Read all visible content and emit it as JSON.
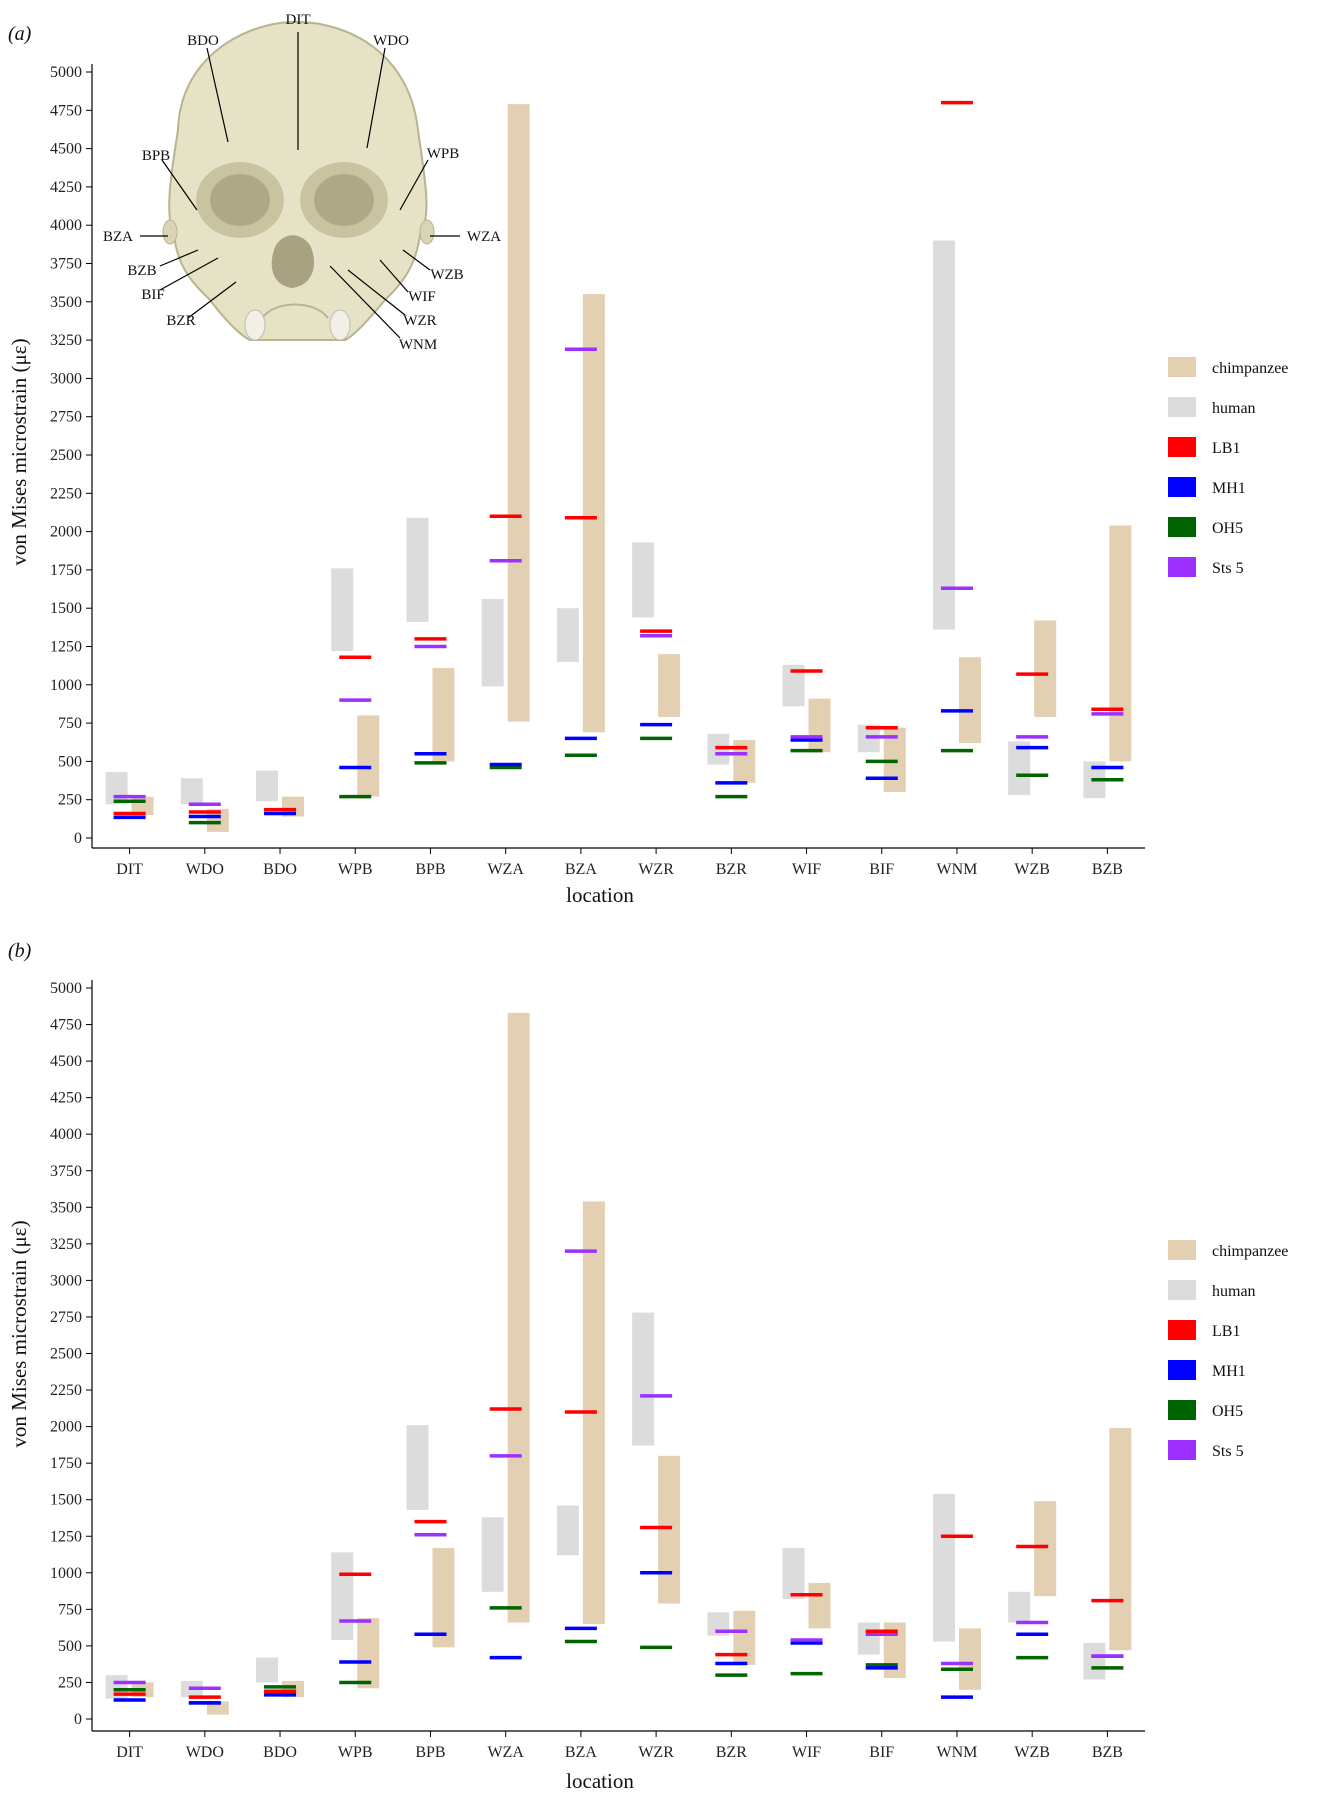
{
  "colors": {
    "chimpanzee": "#e3cfb2",
    "human": "#dcdcdc",
    "LB1": "#ff0000",
    "MH1": "#0000ff",
    "OH5": "#006400",
    "Sts 5": "#9b30ff"
  },
  "legend": [
    "chimpanzee",
    "human",
    "LB1",
    "MH1",
    "OH5",
    "Sts 5"
  ],
  "chart_data": [
    {
      "type": "range-bar",
      "panel_label": "(a)",
      "xlabel": "location",
      "ylabel": "von Mises microstrain (με)",
      "ylim": [
        0,
        5000
      ],
      "yticks": [
        0,
        250,
        500,
        750,
        1000,
        1250,
        1500,
        1750,
        2000,
        2250,
        2500,
        2750,
        3000,
        3250,
        3500,
        3750,
        4000,
        4250,
        4500,
        4750,
        5000
      ],
      "categories": [
        "DIT",
        "WDO",
        "BDO",
        "WPB",
        "BPB",
        "WZA",
        "BZA",
        "WZR",
        "BZR",
        "WIF",
        "BIF",
        "WNM",
        "WZB",
        "BZB"
      ],
      "ranges": {
        "human": [
          [
            220,
            430
          ],
          [
            220,
            390
          ],
          [
            240,
            440
          ],
          [
            1220,
            1760
          ],
          [
            1410,
            2090
          ],
          [
            990,
            1560
          ],
          [
            1150,
            1500
          ],
          [
            1440,
            1930
          ],
          [
            480,
            680
          ],
          [
            860,
            1130
          ],
          [
            560,
            740
          ],
          [
            1360,
            3900
          ],
          [
            280,
            630
          ],
          [
            260,
            500
          ]
        ],
        "chimpanzee": [
          [
            150,
            270
          ],
          [
            40,
            190
          ],
          [
            140,
            270
          ],
          [
            270,
            800
          ],
          [
            500,
            1110
          ],
          [
            760,
            4790
          ],
          [
            690,
            3550
          ],
          [
            790,
            1200
          ],
          [
            360,
            640
          ],
          [
            560,
            910
          ],
          [
            300,
            720
          ],
          [
            620,
            1180
          ],
          [
            790,
            1420
          ],
          [
            500,
            2040
          ]
        ]
      },
      "specimens": {
        "LB1": [
          160,
          170,
          185,
          1180,
          1300,
          2100,
          2090,
          1350,
          590,
          1090,
          720,
          4800,
          1070,
          840
        ],
        "MH1": [
          135,
          140,
          160,
          460,
          550,
          480,
          650,
          740,
          360,
          640,
          390,
          830,
          590,
          460
        ],
        "OH5": [
          240,
          100,
          null,
          270,
          490,
          460,
          540,
          650,
          270,
          570,
          500,
          570,
          410,
          380
        ],
        "Sts 5": [
          270,
          220,
          null,
          900,
          1250,
          1810,
          3190,
          1320,
          550,
          660,
          660,
          1630,
          660,
          810
        ]
      },
      "inset_labels": [
        "DIT",
        "BDO",
        "WDO",
        "BPB",
        "WPB",
        "BZA",
        "WZA",
        "BZB",
        "WZB",
        "BIF",
        "WIF",
        "BZR",
        "WZR",
        "WNM"
      ]
    },
    {
      "type": "range-bar",
      "panel_label": "(b)",
      "xlabel": "location",
      "ylabel": "von Mises microstrain (με)",
      "ylim": [
        0,
        5000
      ],
      "yticks": [
        0,
        250,
        500,
        750,
        1000,
        1250,
        1500,
        1750,
        2000,
        2250,
        2500,
        2750,
        3000,
        3250,
        3500,
        3750,
        4000,
        4250,
        4500,
        4750,
        5000
      ],
      "categories": [
        "DIT",
        "WDO",
        "BDO",
        "WPB",
        "BPB",
        "WZA",
        "BZA",
        "WZR",
        "BZR",
        "WIF",
        "BIF",
        "WNM",
        "WZB",
        "BZB"
      ],
      "ranges": {
        "human": [
          [
            140,
            300
          ],
          [
            150,
            260
          ],
          [
            250,
            420
          ],
          [
            540,
            1140
          ],
          [
            1430,
            2010
          ],
          [
            870,
            1380
          ],
          [
            1120,
            1460
          ],
          [
            1870,
            2780
          ],
          [
            570,
            730
          ],
          [
            820,
            1170
          ],
          [
            440,
            660
          ],
          [
            530,
            1540
          ],
          [
            660,
            870
          ],
          [
            270,
            520
          ]
        ],
        "chimpanzee": [
          [
            150,
            250
          ],
          [
            30,
            120
          ],
          [
            150,
            260
          ],
          [
            210,
            690
          ],
          [
            490,
            1170
          ],
          [
            660,
            4830
          ],
          [
            650,
            3540
          ],
          [
            790,
            1800
          ],
          [
            370,
            740
          ],
          [
            620,
            930
          ],
          [
            280,
            660
          ],
          [
            200,
            620
          ],
          [
            840,
            1490
          ],
          [
            470,
            1990
          ]
        ]
      },
      "specimens": {
        "LB1": [
          170,
          150,
          190,
          990,
          1350,
          2120,
          2100,
          1310,
          440,
          850,
          600,
          1250,
          1180,
          810
        ],
        "MH1": [
          130,
          110,
          165,
          390,
          580,
          420,
          620,
          1000,
          380,
          520,
          350,
          150,
          580,
          430
        ],
        "OH5": [
          200,
          110,
          220,
          250,
          580,
          760,
          530,
          490,
          300,
          310,
          370,
          340,
          420,
          350
        ],
        "Sts 5": [
          250,
          210,
          null,
          670,
          1260,
          1800,
          3200,
          2210,
          600,
          540,
          580,
          380,
          660,
          430
        ]
      }
    }
  ]
}
